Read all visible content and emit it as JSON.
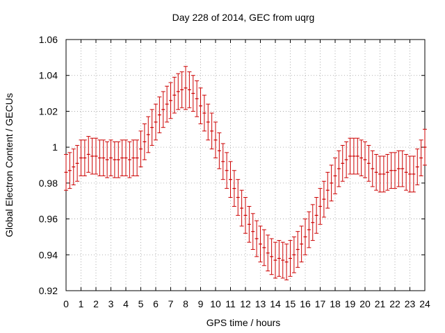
{
  "chart_data": {
    "type": "scatter",
    "title": "Day 228 of 2014, GEC from uqrg",
    "xlabel": "GPS time / hours",
    "ylabel": "Global Electron Content / GECUs",
    "xlim": [
      0,
      24
    ],
    "ylim": [
      0.92,
      1.06
    ],
    "xticks": [
      "0",
      "1",
      "2",
      "3",
      "4",
      "5",
      "6",
      "7",
      "8",
      "9",
      "10",
      "11",
      "12",
      "13",
      "14",
      "15",
      "16",
      "17",
      "18",
      "19",
      "20",
      "21",
      "22",
      "23",
      "24"
    ],
    "yticks": [
      "0.92",
      "0.94",
      "0.96",
      "0.98",
      "1",
      "1.02",
      "1.04",
      "1.06"
    ],
    "grid": true,
    "error_bar_color": "#cc0000",
    "series": [
      {
        "x": [
          0,
          0.25,
          0.5,
          0.75,
          1,
          1.25,
          1.5,
          1.75,
          2,
          2.25,
          2.5,
          2.75,
          3,
          3.25,
          3.5,
          3.75,
          4,
          4.25,
          4.5,
          4.75,
          5,
          5.25,
          5.5,
          5.75,
          6,
          6.25,
          6.5,
          6.75,
          7,
          7.25,
          7.5,
          7.75,
          8,
          8.25,
          8.5,
          8.75,
          9,
          9.25,
          9.5,
          9.75,
          10,
          10.25,
          10.5,
          10.75,
          11,
          11.25,
          11.5,
          11.75,
          12,
          12.25,
          12.5,
          12.75,
          13,
          13.25,
          13.5,
          13.75,
          14,
          14.25,
          14.5,
          14.75,
          15,
          15.25,
          15.5,
          15.75,
          16,
          16.25,
          16.5,
          16.75,
          17,
          17.25,
          17.5,
          17.75,
          18,
          18.25,
          18.5,
          18.75,
          19,
          19.25,
          19.5,
          19.75,
          20,
          20.25,
          20.5,
          20.75,
          21,
          21.25,
          21.5,
          21.75,
          22,
          22.25,
          22.5,
          22.75,
          23,
          23.25,
          23.5,
          23.75,
          24
        ],
        "y": [
          0.986,
          0.987,
          0.989,
          0.991,
          0.994,
          0.994,
          0.996,
          0.995,
          0.995,
          0.994,
          0.994,
          0.993,
          0.994,
          0.993,
          0.993,
          0.994,
          0.994,
          0.993,
          0.994,
          0.994,
          0.999,
          1.003,
          1.007,
          1.011,
          1.014,
          1.018,
          1.021,
          1.024,
          1.026,
          1.029,
          1.031,
          1.032,
          1.033,
          1.032,
          1.03,
          1.027,
          1.023,
          1.019,
          1.014,
          1.009,
          1.004,
          0.998,
          0.992,
          0.987,
          0.982,
          0.977,
          0.972,
          0.966,
          0.962,
          0.957,
          0.953,
          0.949,
          0.946,
          0.944,
          0.941,
          0.939,
          0.937,
          0.938,
          0.937,
          0.936,
          0.938,
          0.94,
          0.943,
          0.946,
          0.95,
          0.954,
          0.958,
          0.962,
          0.967,
          0.971,
          0.976,
          0.98,
          0.984,
          0.988,
          0.991,
          0.993,
          0.995,
          0.995,
          0.995,
          0.994,
          0.993,
          0.991,
          0.988,
          0.986,
          0.985,
          0.985,
          0.986,
          0.987,
          0.987,
          0.988,
          0.988,
          0.986,
          0.985,
          0.985,
          0.989,
          0.994,
          1.0
        ],
        "err": [
          0.01,
          0.01,
          0.01,
          0.01,
          0.01,
          0.01,
          0.01,
          0.01,
          0.01,
          0.01,
          0.01,
          0.01,
          0.01,
          0.01,
          0.01,
          0.01,
          0.01,
          0.01,
          0.01,
          0.01,
          0.01,
          0.01,
          0.01,
          0.01,
          0.01,
          0.01,
          0.01,
          0.01,
          0.01,
          0.01,
          0.01,
          0.01,
          0.012,
          0.01,
          0.01,
          0.01,
          0.01,
          0.01,
          0.01,
          0.01,
          0.01,
          0.01,
          0.01,
          0.01,
          0.01,
          0.01,
          0.01,
          0.01,
          0.01,
          0.01,
          0.01,
          0.01,
          0.01,
          0.01,
          0.01,
          0.01,
          0.01,
          0.01,
          0.01,
          0.01,
          0.01,
          0.01,
          0.01,
          0.01,
          0.01,
          0.01,
          0.01,
          0.01,
          0.01,
          0.01,
          0.01,
          0.01,
          0.01,
          0.01,
          0.01,
          0.01,
          0.01,
          0.01,
          0.01,
          0.01,
          0.01,
          0.01,
          0.01,
          0.01,
          0.01,
          0.01,
          0.01,
          0.01,
          0.01,
          0.01,
          0.01,
          0.01,
          0.01,
          0.01,
          0.01,
          0.01,
          0.01
        ]
      }
    ]
  }
}
